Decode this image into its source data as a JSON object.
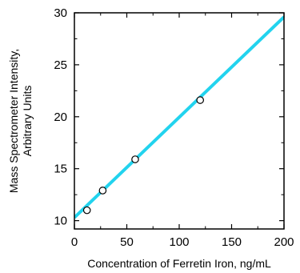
{
  "chart_data": {
    "type": "scatter",
    "title": "",
    "xlabel": "Concentration of Ferretin Iron, ng/mL",
    "ylabel_lines": [
      "Mass Spectrometer Intensity,",
      "Arbitrary Units"
    ],
    "xlim": [
      0,
      200
    ],
    "ylim": [
      9.2,
      30
    ],
    "x_ticks": [
      0,
      50,
      100,
      150,
      200
    ],
    "y_ticks": [
      10,
      15,
      20,
      25,
      30
    ],
    "grid": false,
    "series": [
      {
        "kind": "points",
        "marker": "open-circle",
        "points": [
          {
            "x": 12,
            "y": 11.0
          },
          {
            "x": 27,
            "y": 12.9
          },
          {
            "x": 58,
            "y": 15.9
          },
          {
            "x": 120,
            "y": 21.6
          }
        ]
      },
      {
        "kind": "line",
        "color": "#22d3ee",
        "points": [
          {
            "x": 0,
            "y": 10.3
          },
          {
            "x": 200,
            "y": 29.6
          }
        ]
      }
    ]
  }
}
